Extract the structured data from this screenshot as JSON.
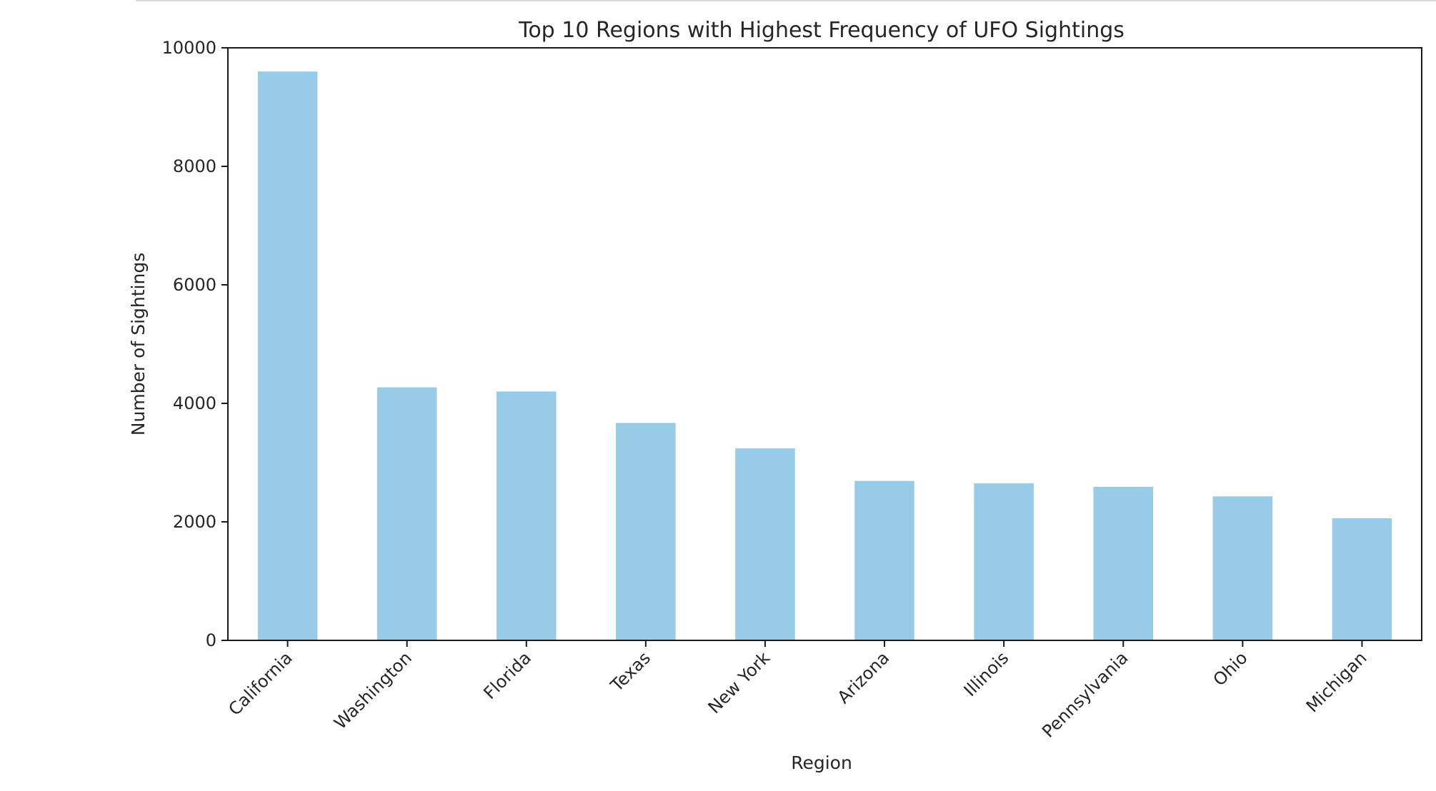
{
  "chart_data": {
    "type": "bar",
    "title": "Top 10 Regions with Highest Frequency of UFO Sightings",
    "xlabel": "Region",
    "ylabel": "Number of Sightings",
    "categories": [
      "California",
      "Washington",
      "Florida",
      "Texas",
      "New York",
      "Arizona",
      "Illinois",
      "Pennsylvania",
      "Ohio",
      "Michigan"
    ],
    "values": [
      9600,
      4270,
      4200,
      3670,
      3240,
      2690,
      2650,
      2590,
      2430,
      2060
    ],
    "ylim": [
      0,
      10000
    ],
    "yticks": [
      0,
      2000,
      4000,
      6000,
      8000,
      10000
    ],
    "bar_color": "#97cbe7",
    "grid": false,
    "legend": "none"
  }
}
